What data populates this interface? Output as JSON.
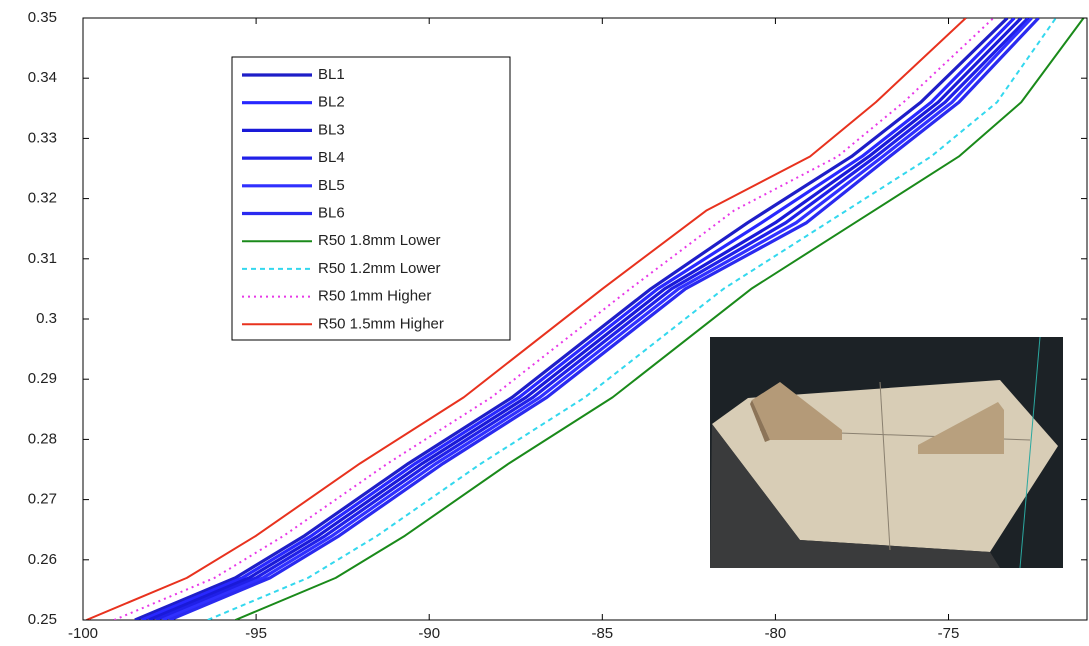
{
  "chart_data": {
    "type": "line",
    "xlim": [
      -100,
      -71
    ],
    "xticks": [
      -100,
      -95,
      -90,
      -85,
      -80,
      -75
    ],
    "ylim": [
      0.25,
      0.35
    ],
    "yticks": [
      0.25,
      0.26,
      0.27,
      0.28,
      0.29,
      0.3,
      0.31,
      0.32,
      0.33,
      0.34,
      0.35
    ],
    "grid": false,
    "legend": "upper left",
    "series": [
      {
        "name": "BL1",
        "color": "#1e1ec8",
        "linestyle": "solid",
        "x": [
          -98.5,
          -95.6,
          -93.6,
          -90.6,
          -87.6,
          -83.6,
          -80.8,
          -77.8,
          -75.8,
          -73.3
        ],
        "values": [
          0.25,
          0.257,
          0.264,
          0.276,
          0.287,
          0.305,
          0.316,
          0.327,
          0.336,
          0.35
        ]
      },
      {
        "name": "BL2",
        "color": "#2828ff",
        "linestyle": "solid",
        "x": [
          -98.3,
          -95.4,
          -93.4,
          -90.4,
          -87.4,
          -83.4,
          -80.4,
          -77.5,
          -75.5,
          -73.1
        ],
        "values": [
          0.25,
          0.257,
          0.264,
          0.276,
          0.287,
          0.305,
          0.316,
          0.327,
          0.336,
          0.35
        ]
      },
      {
        "name": "BL3",
        "color": "#1a1ad8",
        "linestyle": "solid",
        "x": [
          -98.1,
          -95.2,
          -93.2,
          -90.2,
          -87.2,
          -83.2,
          -80.0,
          -77.3,
          -75.3,
          -72.9
        ],
        "values": [
          0.25,
          0.257,
          0.264,
          0.276,
          0.287,
          0.305,
          0.316,
          0.327,
          0.336,
          0.35
        ]
      },
      {
        "name": "BL4",
        "color": "#2020e8",
        "linestyle": "solid",
        "x": [
          -97.9,
          -95.0,
          -93.0,
          -90.0,
          -87.0,
          -83.0,
          -79.7,
          -77.1,
          -75.1,
          -72.7
        ],
        "values": [
          0.25,
          0.257,
          0.264,
          0.276,
          0.287,
          0.305,
          0.316,
          0.327,
          0.336,
          0.35
        ]
      },
      {
        "name": "BL5",
        "color": "#3030ff",
        "linestyle": "solid",
        "x": [
          -97.7,
          -94.8,
          -92.8,
          -89.8,
          -86.8,
          -82.8,
          -79.4,
          -76.9,
          -74.9,
          -72.6
        ],
        "values": [
          0.25,
          0.257,
          0.264,
          0.276,
          0.287,
          0.305,
          0.316,
          0.327,
          0.336,
          0.35
        ]
      },
      {
        "name": "BL6",
        "color": "#2a2af0",
        "linestyle": "solid",
        "x": [
          -97.5,
          -94.6,
          -92.6,
          -89.6,
          -86.6,
          -82.6,
          -79.1,
          -76.7,
          -74.7,
          -72.4
        ],
        "values": [
          0.25,
          0.257,
          0.264,
          0.276,
          0.287,
          0.305,
          0.316,
          0.327,
          0.336,
          0.35
        ]
      },
      {
        "name": "R50 1.8mm Lower",
        "color": "#1a8a1a",
        "linestyle": "solid",
        "x": [
          -95.6,
          -92.7,
          -90.7,
          -87.7,
          -84.7,
          -80.7,
          -77.7,
          -74.7,
          -72.9,
          -71.1
        ],
        "values": [
          0.25,
          0.257,
          0.264,
          0.276,
          0.287,
          0.305,
          0.316,
          0.327,
          0.336,
          0.35
        ]
      },
      {
        "name": "R50 1.2mm Lower",
        "color": "#33d8ee",
        "linestyle": "dashed",
        "x": [
          -96.4,
          -93.5,
          -91.5,
          -88.5,
          -85.5,
          -81.5,
          -78.5,
          -75.5,
          -73.6,
          -71.9
        ],
        "values": [
          0.25,
          0.257,
          0.264,
          0.276,
          0.287,
          0.305,
          0.316,
          0.327,
          0.336,
          0.35
        ]
      },
      {
        "name": "R50 1mm Higher",
        "color": "#e838e8",
        "linestyle": "dotted",
        "x": [
          -99.1,
          -96.2,
          -94.2,
          -91.2,
          -88.2,
          -84.2,
          -81.2,
          -78.2,
          -76.3,
          -73.7
        ],
        "values": [
          0.25,
          0.257,
          0.264,
          0.276,
          0.287,
          0.305,
          0.318,
          0.327,
          0.336,
          0.35
        ]
      },
      {
        "name": "R50 1.5mm Higher",
        "color": "#e8321e",
        "linestyle": "solid",
        "x": [
          -99.9,
          -97.0,
          -95.0,
          -92.0,
          -89.0,
          -85.0,
          -82.0,
          -79.0,
          -77.1,
          -74.5
        ],
        "values": [
          0.25,
          0.257,
          0.264,
          0.276,
          0.287,
          0.305,
          0.318,
          0.327,
          0.336,
          0.35
        ]
      }
    ]
  }
}
